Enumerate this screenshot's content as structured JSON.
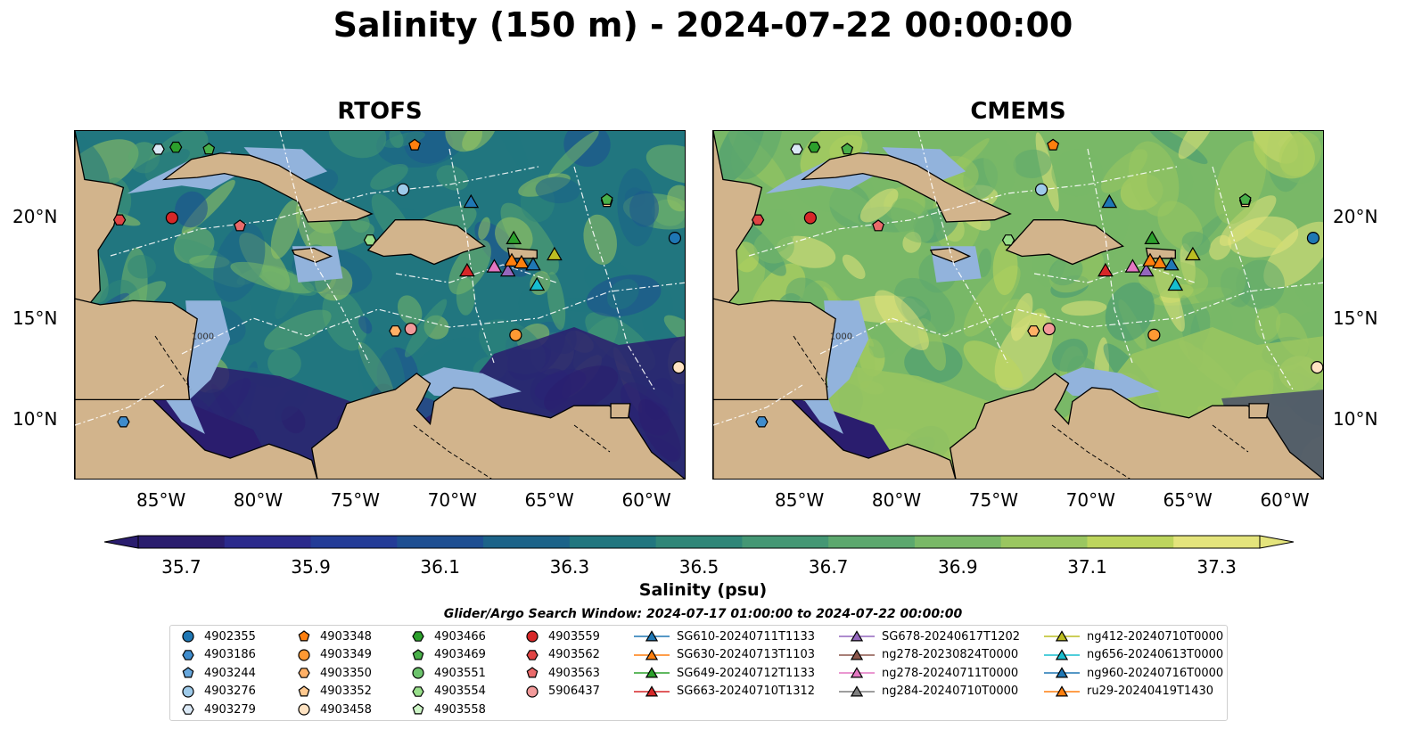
{
  "title": "Salinity (150 m) - 2024-07-22 00:00:00",
  "panels": [
    {
      "id": "rtofs",
      "title": "RTOFS"
    },
    {
      "id": "cmems",
      "title": "CMEMS"
    }
  ],
  "axes": {
    "lon_ticks": [
      "85°W",
      "80°W",
      "75°W",
      "70°W",
      "65°W",
      "60°W"
    ],
    "lat_ticks": [
      "20°N",
      "15°N",
      "10°N"
    ],
    "bathy_label": "1000"
  },
  "colorbar": {
    "label": "Salinity (psu)",
    "ticks": [
      "35.7",
      "35.9",
      "36.1",
      "36.3",
      "36.5",
      "36.7",
      "36.9",
      "37.1",
      "37.3"
    ],
    "colors": [
      "#2a1d6e",
      "#2b2a8c",
      "#243c97",
      "#1e4f92",
      "#1c6389",
      "#21767f",
      "#2f8678",
      "#449774",
      "#5ca86e",
      "#79b867",
      "#9ac660",
      "#bdd55d",
      "#e4e47c"
    ],
    "extend": "both"
  },
  "search_window": "Glider/Argo Search Window: 2024-07-17 01:00:00 to 2024-07-22 00:00:00",
  "colors": {
    "ocean_deep": "#2a1d6e",
    "land": "#d2b48c",
    "shelf": "#92b3dc"
  },
  "legend": [
    {
      "label": "4902355",
      "marker": "circle",
      "color": "#1f77b4"
    },
    {
      "label": "4903186",
      "marker": "hexagon",
      "color": "#3f8ccc"
    },
    {
      "label": "4903244",
      "marker": "pentagon",
      "color": "#67a7dd"
    },
    {
      "label": "4903276",
      "marker": "circle",
      "color": "#9ecae9"
    },
    {
      "label": "4903279",
      "marker": "hexagon",
      "color": "#dbe9f6"
    },
    {
      "label": "4903348",
      "marker": "pentagon",
      "color": "#ff7f0e"
    },
    {
      "label": "4903349",
      "marker": "circle",
      "color": "#ff9933"
    },
    {
      "label": "4903350",
      "marker": "hexagon",
      "color": "#ffb066"
    },
    {
      "label": "4903352",
      "marker": "pentagon",
      "color": "#ffc98f"
    },
    {
      "label": "4903458",
      "marker": "circle",
      "color": "#ffe3c2"
    },
    {
      "label": "4903466",
      "marker": "hexagon",
      "color": "#2ca02c"
    },
    {
      "label": "4903469",
      "marker": "pentagon",
      "color": "#49b049"
    },
    {
      "label": "4903551",
      "marker": "circle",
      "color": "#6cc36c"
    },
    {
      "label": "4903554",
      "marker": "hexagon",
      "color": "#98df8a"
    },
    {
      "label": "4903558",
      "marker": "pentagon",
      "color": "#cdf5c6"
    },
    {
      "label": "4903559",
      "marker": "circle",
      "color": "#d62728"
    },
    {
      "label": "4903562",
      "marker": "hexagon",
      "color": "#e04545"
    },
    {
      "label": "4903563",
      "marker": "pentagon",
      "color": "#ea6a6a"
    },
    {
      "label": "5906437",
      "marker": "circle",
      "color": "#f29a9a"
    },
    {
      "label": "SG610-20240711T1133",
      "marker": "triangle",
      "color": "#1f77b4"
    },
    {
      "label": "SG630-20240713T1103",
      "marker": "triangle",
      "color": "#ff7f0e"
    },
    {
      "label": "SG649-20240712T1133",
      "marker": "triangle",
      "color": "#2ca02c"
    },
    {
      "label": "SG663-20240710T1312",
      "marker": "triangle",
      "color": "#d62728"
    },
    {
      "label": "SG678-20240617T1202",
      "marker": "triangle",
      "color": "#9467bd"
    },
    {
      "label": "ng278-20230824T0000",
      "marker": "triangle",
      "color": "#8c564b"
    },
    {
      "label": "ng278-20240711T0000",
      "marker": "triangle",
      "color": "#e377c2"
    },
    {
      "label": "ng284-20240710T0000",
      "marker": "triangle",
      "color": "#7f7f7f"
    },
    {
      "label": "ng412-20240710T0000",
      "marker": "triangle",
      "color": "#bcbd22"
    },
    {
      "label": "ng656-20240613T0000",
      "marker": "triangle",
      "color": "#17becf"
    },
    {
      "label": "ng960-20240716T0000",
      "marker": "triangle",
      "color": "#1f77b4"
    },
    {
      "label": "ru29-20240419T1430",
      "marker": "triangle",
      "color": "#ff7f0e"
    }
  ],
  "observations": [
    {
      "label": "4903279",
      "lon": -85.2,
      "lat": 23.4
    },
    {
      "label": "4903466",
      "lon": -84.3,
      "lat": 23.5
    },
    {
      "label": "4903469",
      "lon": -82.6,
      "lat": 23.4
    },
    {
      "label": "4903348",
      "lon": -72.0,
      "lat": 23.6
    },
    {
      "label": "4903276",
      "lon": -72.6,
      "lat": 21.4
    },
    {
      "label": "SG610-20240711T1133",
      "lon": -69.1,
      "lat": 20.8
    },
    {
      "label": "4903352",
      "lon": -62.1,
      "lat": 20.8
    },
    {
      "label": "4903469",
      "lon": -62.1,
      "lat": 20.9
    },
    {
      "label": "4903562",
      "lon": -87.2,
      "lat": 19.9
    },
    {
      "label": "4903559",
      "lon": -84.5,
      "lat": 20.0
    },
    {
      "label": "4903563",
      "lon": -81.0,
      "lat": 19.6
    },
    {
      "label": "4902355",
      "lon": -58.6,
      "lat": 19.0
    },
    {
      "label": "4903554",
      "lon": -74.3,
      "lat": 18.9
    },
    {
      "label": "SG649-20240712T1133",
      "lon": -66.9,
      "lat": 19.0
    },
    {
      "label": "ng412-20240710T0000",
      "lon": -64.8,
      "lat": 18.2
    },
    {
      "label": "SG663-20240710T1312",
      "lon": -69.3,
      "lat": 17.4
    },
    {
      "label": "ng278-20240711T0000",
      "lon": -67.9,
      "lat": 17.6
    },
    {
      "label": "SG678-20240617T1202",
      "lon": -67.2,
      "lat": 17.4
    },
    {
      "label": "SG630-20240713T1103",
      "lon": -67.0,
      "lat": 17.9
    },
    {
      "label": "ru29-20240419T1430",
      "lon": -66.5,
      "lat": 17.8
    },
    {
      "label": "ng960-20240716T0000",
      "lon": -65.9,
      "lat": 17.7
    },
    {
      "label": "ng656-20240613T0000",
      "lon": -65.7,
      "lat": 16.7
    },
    {
      "label": "4903350",
      "lon": -73.0,
      "lat": 14.4
    },
    {
      "label": "5906437",
      "lon": -72.2,
      "lat": 14.5
    },
    {
      "label": "4903349",
      "lon": -66.8,
      "lat": 14.2
    },
    {
      "label": "4903458",
      "lon": -58.4,
      "lat": 12.6
    },
    {
      "label": "4903186",
      "lon": -87.0,
      "lat": 9.9
    }
  ]
}
